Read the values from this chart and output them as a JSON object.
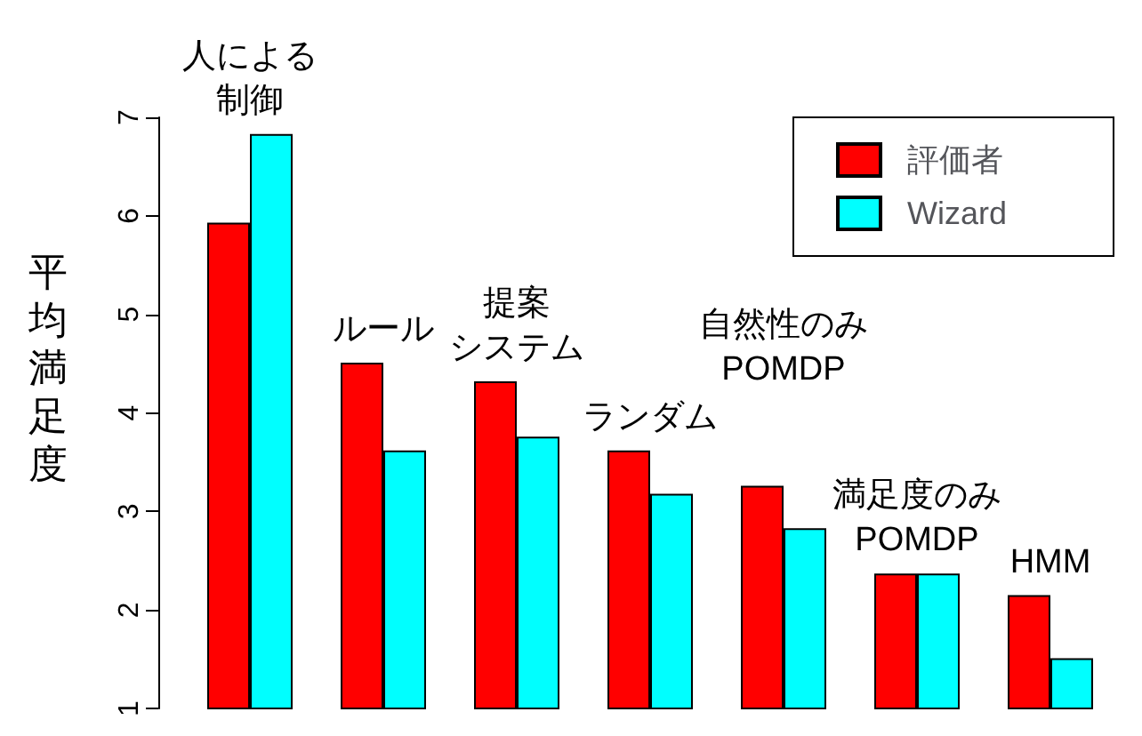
{
  "chart_data": {
    "type": "bar",
    "ylabel": "平均満足度",
    "categories": [
      "人による制御",
      "ルール",
      "提案システム",
      "ランダム",
      "自然性のみ POMDP",
      "満足度のみ POMDP",
      "HMM"
    ],
    "series": [
      {
        "name": "評価者",
        "color": "#ff0000",
        "values": [
          5.93,
          4.51,
          4.32,
          3.62,
          3.26,
          2.37,
          2.15
        ]
      },
      {
        "name": "Wizard",
        "color": "#00ffff",
        "values": [
          6.83,
          3.62,
          3.76,
          3.18,
          2.83,
          2.37,
          1.51
        ]
      }
    ],
    "ylim": [
      1,
      7
    ],
    "yticks": [
      1,
      2,
      3,
      4,
      5,
      6,
      7
    ],
    "legend": "top right",
    "grid": false,
    "tick_labels": "y"
  }
}
